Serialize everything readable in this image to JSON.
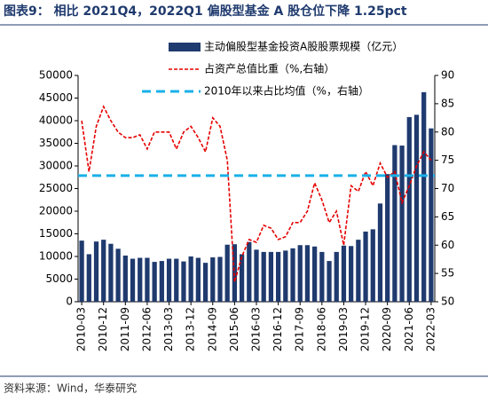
{
  "chart_data": {
    "type": "bar",
    "title": "图表9：  相比 2021Q4，2022Q1 偏股型基金 A 股仓位下降 1.25pct",
    "source": "资料来源：Wind，华泰研究",
    "categories": [
      "2010-03",
      null,
      null,
      "2010-12",
      null,
      null,
      "2011-09",
      null,
      null,
      "2012-06",
      null,
      null,
      "2013-03",
      null,
      null,
      "2013-12",
      null,
      null,
      "2014-09",
      null,
      null,
      "2015-06",
      null,
      null,
      "2016-03",
      null,
      null,
      "2016-12",
      null,
      null,
      "2017-09",
      null,
      null,
      "2018-06",
      null,
      null,
      "2019-03",
      null,
      null,
      "2019-12",
      null,
      null,
      "2020-09",
      null,
      null,
      "2021-06",
      null,
      null,
      "2022-03"
    ],
    "series": [
      {
        "name": "主动偏股型基金投资A股股票规模（亿元）",
        "type": "bar",
        "color": "#1f3a6e",
        "values": [
          13500,
          10500,
          13300,
          13700,
          12800,
          11700,
          10200,
          9500,
          9700,
          9700,
          8800,
          9000,
          9500,
          9500,
          8900,
          10000,
          9700,
          8600,
          9800,
          9900,
          12600,
          12700,
          10500,
          13200,
          11500,
          11000,
          11000,
          11000,
          11300,
          11800,
          12500,
          12500,
          12200,
          11000,
          9000,
          11000,
          12400,
          12300,
          13700,
          15500,
          16000,
          21700,
          28200,
          34600,
          34500,
          40800,
          41300,
          46300,
          38300
        ]
      },
      {
        "name": "占资产总值比重（%,右轴）",
        "type": "line",
        "axis": "y2",
        "color": "#e60000",
        "values": [
          82,
          73,
          81,
          84.5,
          82,
          80,
          79,
          79,
          79.5,
          77,
          80,
          80,
          80,
          77,
          80,
          81,
          79,
          76.5,
          82.5,
          81,
          75,
          53.5,
          58,
          61,
          60.5,
          63.5,
          63,
          61,
          61.5,
          64,
          64,
          66,
          71,
          68,
          64,
          66,
          60,
          70.5,
          69.5,
          73,
          70.5,
          74.5,
          72,
          73,
          67.5,
          70.5,
          74,
          76.5,
          75
        ]
      }
    ],
    "reference_line": {
      "name": "2010年以来占比均值（%，右轴）",
      "axis": "y2",
      "color": "#1ab0e8",
      "value": 72.3
    },
    "ylim": [
      0,
      50000
    ],
    "yticks": [
      0,
      5000,
      10000,
      15000,
      20000,
      25000,
      30000,
      35000,
      40000,
      45000,
      50000
    ],
    "y2lim": [
      50,
      90
    ],
    "y2ticks": [
      50,
      55,
      60,
      65,
      70,
      75,
      80,
      85,
      90
    ]
  }
}
